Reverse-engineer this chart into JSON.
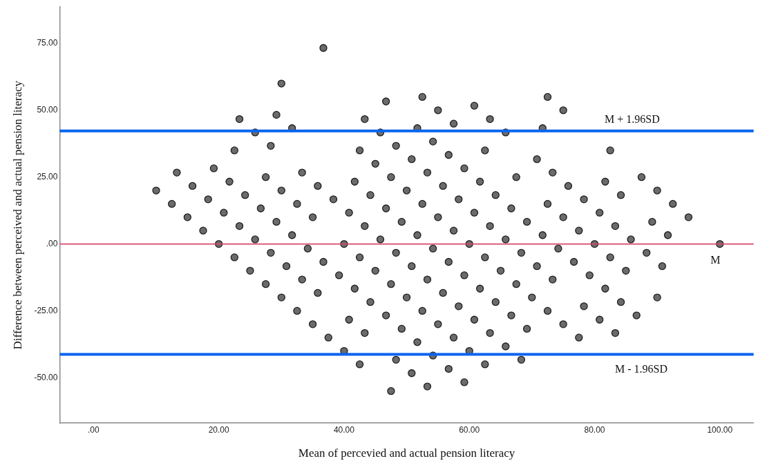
{
  "chart_data": {
    "type": "scatter",
    "xlabel": "Mean of percevied and actual pension literacy",
    "ylabel": "Difference between perceived and actual pension literacy",
    "xlim": [
      -5.4,
      105.4
    ],
    "ylim": [
      -67,
      88.6
    ],
    "xticks": [
      {
        "value": 0,
        "label": ".00"
      },
      {
        "value": 20,
        "label": "20.00"
      },
      {
        "value": 40,
        "label": "40.00"
      },
      {
        "value": 60,
        "label": "60.00"
      },
      {
        "value": 80,
        "label": "80.00"
      },
      {
        "value": 100,
        "label": "100.00"
      }
    ],
    "yticks": [
      {
        "value": -50,
        "label": "-50.00"
      },
      {
        "value": -25,
        "label": "-25.00"
      },
      {
        "value": 0,
        "label": ".00"
      },
      {
        "value": 25,
        "label": "25.00"
      },
      {
        "value": 50,
        "label": "50.00"
      },
      {
        "value": 75,
        "label": "75.00"
      }
    ],
    "grid": false,
    "legend": false,
    "marker": "circle",
    "series": [
      {
        "color": "#6b6b6b",
        "x": [
          10,
          12.5,
          15,
          17.5,
          20,
          22.5,
          25,
          27.5,
          30,
          32.5,
          35,
          37.5,
          40,
          42.5,
          47.5,
          13.3,
          15.8,
          18.3,
          20.8,
          23.3,
          25.8,
          28.3,
          30.8,
          33.3,
          35.8,
          40.8,
          43.3,
          48.3,
          50.8,
          53.3,
          19.2,
          21.7,
          24.2,
          26.7,
          29.2,
          31.7,
          34.2,
          36.7,
          39.2,
          41.7,
          44.2,
          46.7,
          49.2,
          51.7,
          54.2,
          56.7,
          59.2,
          22.5,
          27.5,
          30,
          32.5,
          35,
          40,
          42.5,
          45,
          47.5,
          50,
          52.5,
          55,
          57.5,
          60,
          62.5,
          23.3,
          25.8,
          28.3,
          33.3,
          35.8,
          38.3,
          40.8,
          43.3,
          45.8,
          48.3,
          50.8,
          53.3,
          55.8,
          58.3,
          60.8,
          63.3,
          65.8,
          68.3,
          29.2,
          31.7,
          41.7,
          44.2,
          46.7,
          49.2,
          51.7,
          54.2,
          56.7,
          59.2,
          61.7,
          64.2,
          66.7,
          69.2,
          30,
          42.5,
          45,
          47.5,
          50,
          52.5,
          55,
          57.5,
          60,
          62.5,
          65,
          67.5,
          70,
          72.5,
          75,
          77.5,
          43.3,
          45.8,
          48.3,
          50.8,
          53.3,
          55.8,
          58.3,
          60.8,
          63.3,
          65.8,
          68.3,
          70.8,
          73.3,
          78.3,
          80.8,
          83.3,
          36.7,
          46.7,
          51.7,
          54.2,
          56.7,
          59.2,
          61.7,
          64.2,
          66.7,
          69.2,
          71.7,
          74.2,
          76.7,
          79.2,
          81.7,
          84.2,
          86.7,
          52.5,
          55,
          57.5,
          62.5,
          67.5,
          72.5,
          75,
          77.5,
          80,
          82.5,
          85,
          90,
          60.8,
          63.3,
          65.8,
          70.8,
          73.3,
          75.8,
          78.3,
          80.8,
          83.3,
          85.8,
          88.3,
          90.8,
          71.7,
          81.7,
          84.2,
          89.2,
          91.7,
          72.5,
          75,
          82.5,
          87.5,
          90,
          92.5,
          95,
          100
        ],
        "values": [
          20,
          15,
          10,
          5,
          0,
          -5,
          -10,
          -15,
          -20,
          -25,
          -30,
          -35,
          -40,
          -45,
          -55,
          26.7,
          21.7,
          16.7,
          11.7,
          6.7,
          1.7,
          -3.3,
          -8.3,
          -13.3,
          -18.3,
          -28.3,
          -33.3,
          -43.3,
          -48.3,
          -53.3,
          28.3,
          23.3,
          18.3,
          13.3,
          8.3,
          3.3,
          -1.7,
          -6.7,
          -11.7,
          -16.7,
          -21.7,
          -26.7,
          -31.7,
          -36.7,
          -41.7,
          -46.7,
          -51.7,
          35,
          25,
          20,
          15,
          10,
          0,
          -5,
          -10,
          -15,
          -20,
          -25,
          -30,
          -35,
          -40,
          -45,
          46.7,
          41.7,
          36.7,
          26.7,
          21.7,
          16.7,
          11.7,
          6.7,
          1.7,
          -3.3,
          -8.3,
          -13.3,
          -18.3,
          -23.3,
          -28.3,
          -33.3,
          -38.3,
          -43.3,
          48.3,
          43.3,
          23.3,
          18.3,
          13.3,
          8.3,
          3.3,
          -1.7,
          -6.7,
          -11.7,
          -16.7,
          -21.7,
          -26.7,
          -31.7,
          60,
          35,
          30,
          25,
          20,
          15,
          10,
          5,
          0,
          -5,
          -10,
          -15,
          -20,
          -25,
          -30,
          -35,
          46.7,
          41.7,
          36.7,
          31.7,
          26.7,
          21.7,
          16.7,
          11.7,
          6.7,
          1.7,
          -3.3,
          -8.3,
          -13.3,
          -23.3,
          -28.3,
          -33.3,
          73.3,
          53.3,
          43.3,
          38.3,
          33.3,
          28.3,
          23.3,
          18.3,
          13.3,
          8.3,
          3.3,
          -1.7,
          -6.7,
          -11.7,
          -16.7,
          -21.7,
          -26.7,
          55,
          50,
          45,
          35,
          25,
          15,
          10,
          5,
          0,
          -5,
          -10,
          -20,
          51.7,
          46.7,
          41.7,
          31.7,
          26.7,
          21.7,
          16.7,
          11.7,
          6.7,
          1.7,
          -3.3,
          -8.3,
          43.3,
          23.3,
          18.3,
          8.3,
          3.3,
          55,
          50,
          35,
          25,
          20,
          15,
          10,
          0
        ]
      }
    ],
    "ref_lines": [
      {
        "axis": "y",
        "value": 42.3,
        "label": "M + 1.96SD",
        "color": "#0a64f0"
      },
      {
        "axis": "y",
        "value": 0,
        "label": "M",
        "color": "#d9456a"
      },
      {
        "axis": "y",
        "value": -41.3,
        "label": "M - 1.96SD",
        "color": "#0a64f0"
      }
    ]
  }
}
